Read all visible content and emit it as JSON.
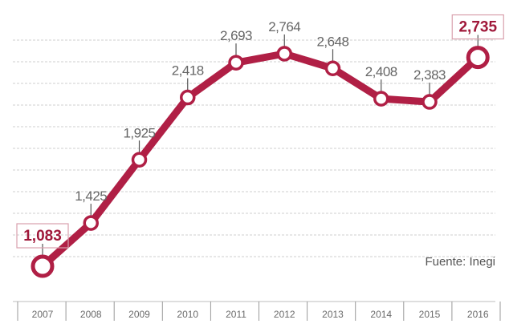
{
  "chart_data": {
    "type": "line",
    "x": [
      "2007",
      "2008",
      "2009",
      "2010",
      "2011",
      "2012",
      "2013",
      "2014",
      "2015",
      "2016"
    ],
    "values": [
      1083,
      1425,
      1925,
      2418,
      2693,
      2764,
      2648,
      2408,
      2383,
      2735
    ],
    "data_labels": [
      "1,083",
      "1,425",
      "1,925",
      "2,418",
      "2,693",
      "2,764",
      "2,648",
      "2,408",
      "2,383",
      "2,735"
    ],
    "highlighted_points": [
      "2007",
      "2016"
    ],
    "source": "Fuente: Inegi",
    "grid": true,
    "colors": {
      "line": "#b01f45",
      "highlight_text": "#a0183a",
      "label_text": "#666666",
      "grid": "#cfcfcf"
    }
  }
}
